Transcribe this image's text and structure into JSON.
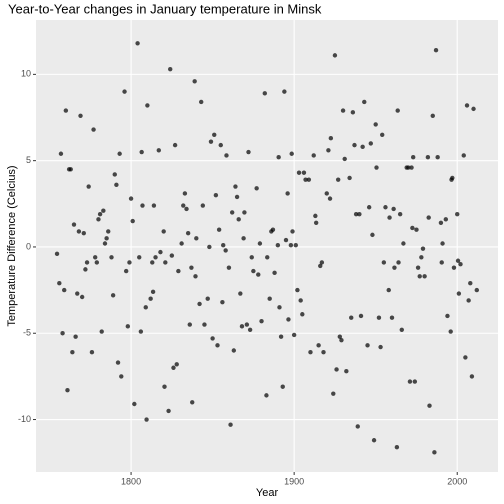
{
  "chart_data": {
    "type": "scatter",
    "title": "Year-to-Year changes in January temperature in Minsk",
    "x_label": "Year",
    "y_label": "Temperature Difference (Celcius)",
    "color": "#000000",
    "xlim": [
      1741.7,
      2025
    ],
    "ylim": [
      -13.04,
      13.15
    ],
    "xticks": [
      1800,
      1900,
      2000
    ],
    "yticks": [
      -10,
      -5,
      0,
      5,
      10
    ],
    "grid": true,
    "x": [
      1754.6,
      1756,
      1757,
      1758,
      1759,
      1760,
      1761,
      1762,
      1763,
      1764,
      1765,
      1766,
      1767,
      1768,
      1769,
      1770,
      1771,
      1772,
      1773,
      1774,
      1776,
      1777,
      1778,
      1779,
      1780,
      1781,
      1782,
      1783,
      1784,
      1785,
      1786,
      1788,
      1789,
      1790,
      1791,
      1792,
      1793,
      1794,
      1796,
      1797,
      1798,
      1799,
      1800,
      1801,
      1802,
      1804,
      1805,
      1806,
      1806.5,
      1807,
      1809,
      1809.5,
      1810,
      1812,
      1813,
      1813.5,
      1814,
      1815,
      1817,
      1818,
      1820,
      1820.5,
      1821,
      1823,
      1824,
      1825,
      1826,
      1827,
      1828,
      1829,
      1831,
      1832,
      1833,
      1834,
      1835,
      1836,
      1837,
      1837.5,
      1839,
      1839.5,
      1840,
      1842,
      1843,
      1844,
      1845,
      1847,
      1848,
      1849,
      1850,
      1851,
      1852,
      1853,
      1854,
      1855,
      1856,
      1856.5,
      1858,
      1858.5,
      1860,
      1861,
      1862,
      1863,
      1864,
      1865,
      1866,
      1867,
      1868,
      1869,
      1869.5,
      1871,
      1872,
      1873,
      1874,
      1875,
      1877,
      1878,
      1879,
      1880,
      1882,
      1883,
      1883.5,
      1885,
      1886,
      1887,
      1888,
      1890,
      1890.5,
      1891,
      1892,
      1893,
      1894,
      1895,
      1896,
      1896.5,
      1898,
      1898.5,
      1899,
      1900,
      1901,
      1902,
      1903,
      1904,
      1905,
      1906,
      1907,
      1909,
      1910,
      1912,
      1913,
      1913.5,
      1915,
      1916,
      1917,
      1918,
      1920,
      1921,
      1922,
      1922.5,
      1924,
      1925,
      1926,
      1927,
      1928,
      1929,
      1930,
      1931,
      1932,
      1934,
      1935,
      1936,
      1937,
      1938,
      1939,
      1940,
      1941,
      1942,
      1943,
      1945,
      1946,
      1947,
      1948,
      1949,
      1950,
      1950.5,
      1952,
      1953,
      1954,
      1955,
      1956,
      1958,
      1958.5,
      1960,
      1961,
      1961.5,
      1963,
      1963.5,
      1964,
      1965,
      1966,
      1967,
      1969,
      1970,
      1971,
      1972,
      1972.5,
      1973,
      1974,
      1975,
      1976,
      1977,
      1978,
      1979,
      1980,
      1982,
      1982.5,
      1983,
      1985,
      1986,
      1987,
      1988,
      1990,
      1990.5,
      1991,
      1993,
      1994,
      1996,
      1996.5,
      1997,
      1998,
      2000,
      2000.5,
      2001,
      2002,
      2004,
      2005,
      2006,
      2007,
      2008,
      2009,
      2010,
      2012
    ],
    "values": [
      -0.4,
      -2.1,
      5.4,
      -5.0,
      -2.5,
      7.9,
      -8.3,
      4.5,
      4.5,
      -6.1,
      1.3,
      -5.2,
      -2.7,
      0.9,
      7.6,
      -2.9,
      0.8,
      -1.3,
      -0.9,
      3.5,
      -6.1,
      6.8,
      -0.6,
      -0.9,
      1.6,
      1.9,
      -4.9,
      2.1,
      0.2,
      0.5,
      0.9,
      -0.6,
      -2.8,
      4.2,
      3.6,
      -6.7,
      5.4,
      -7.5,
      9.0,
      -1.4,
      -4.6,
      -0.9,
      2.8,
      1.5,
      -9.1,
      11.8,
      -0.6,
      -4.9,
      5.5,
      2.4,
      -3.5,
      -10.0,
      8.2,
      -3.0,
      -0.9,
      -2.6,
      2.4,
      -0.6,
      5.6,
      -0.3,
      0.9,
      -8.1,
      -0.9,
      -9.5,
      10.3,
      -0.5,
      -7.0,
      5.9,
      -6.8,
      -1.4,
      0.2,
      2.4,
      3.1,
      2.2,
      0.8,
      -4.5,
      -1.2,
      -9.0,
      9.6,
      -1.7,
      0.5,
      -3.3,
      8.4,
      2.4,
      -4.5,
      -3.0,
      0.0,
      6.1,
      -5.3,
      6.5,
      3.0,
      -5.7,
      1.0,
      5.9,
      -3.2,
      0.1,
      -0.2,
      5.3,
      -1.2,
      -10.3,
      2.0,
      -6.0,
      3.5,
      2.9,
      1.6,
      -2.7,
      -4.6,
      0.5,
      2.0,
      -4.5,
      5.5,
      -4.8,
      -0.6,
      -1.4,
      3.4,
      -1.6,
      0.2,
      -4.3,
      8.9,
      -8.6,
      -0.6,
      -3.0,
      0.9,
      1.0,
      -1.5,
      0.1,
      5.2,
      -3.5,
      -5.2,
      -8.1,
      9.0,
      0.4,
      3.1,
      -4.2,
      0.1,
      5.4,
      0.9,
      -5.1,
      0.1,
      -2.5,
      4.3,
      -3.1,
      -3.9,
      4.3,
      3.9,
      3.9,
      -6.1,
      5.3,
      1.8,
      1.4,
      -5.7,
      -1.1,
      -0.9,
      -6.1,
      3.1,
      5.6,
      2.8,
      6.3,
      -8.5,
      11.1,
      -7.1,
      3.9,
      -5.2,
      -5.4,
      7.9,
      5.1,
      -7.2,
      4.0,
      -4.1,
      7.8,
      5.9,
      1.9,
      -10.4,
      1.9,
      -4.0,
      5.8,
      8.4,
      -5.7,
      2.3,
      6.0,
      0.7,
      -11.2,
      7.1,
      4.6,
      -4.1,
      -5.8,
      6.5,
      -0.9,
      2.3,
      -2.5,
      1.7,
      -4.1,
      2.2,
      -1.2,
      -11.6,
      7.9,
      -0.9,
      1.9,
      -4.8,
      0.2,
      4.6,
      4.6,
      -7.8,
      4.6,
      1.1,
      5.2,
      -7.8,
      1.0,
      -1.2,
      -1.7,
      -0.6,
      -0.1,
      -1.7,
      5.2,
      1.7,
      -9.2,
      7.6,
      -11.9,
      11.4,
      5.2,
      1.4,
      -0.9,
      0.2,
      1.6,
      -4.0,
      -4.9,
      3.9,
      4.0,
      -1.2,
      1.9,
      -0.8,
      -2.7,
      -1.0,
      5.3,
      -6.4,
      8.2,
      -3.1,
      -2.1,
      -7.5,
      8.0,
      -2.5
    ]
  }
}
